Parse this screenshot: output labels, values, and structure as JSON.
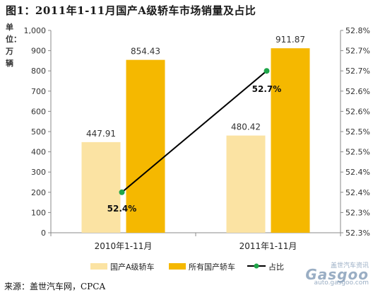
{
  "title": "图1：2011年1-11月国产A级轿车市场销量及占比",
  "unit_label": "单位：万辆",
  "source": "来源：盖世汽车网，CPCA",
  "watermark": {
    "brand": "Gasgoo",
    "cn": "盖世汽车资讯",
    "url": "auto.gasgoo.com"
  },
  "colors": {
    "series1": "#fbe3a3",
    "series2": "#f5b800",
    "line": "#000000",
    "marker": "#1fa64a"
  },
  "chart_data": {
    "type": "bar",
    "title": "图1：2011年1-11月国产A级轿车市场销量及占比",
    "ylabel": "单位：万辆",
    "categories": [
      "2010年1-11月",
      "2011年1-11月"
    ],
    "ylim": [
      0,
      1000
    ],
    "yticks": [
      "0",
      "100",
      "200",
      "300",
      "400",
      "500",
      "600",
      "700",
      "800",
      "900",
      "1,000"
    ],
    "y2lim": [
      52.3,
      52.8
    ],
    "y2ticks": [
      "52.3%",
      "52.3%",
      "52.4%",
      "52.4%",
      "52.5%",
      "52.5%",
      "52.6%",
      "52.6%",
      "52.7%",
      "52.7%",
      "52.8%"
    ],
    "series": [
      {
        "name": "国产A级轿车",
        "type": "bar",
        "values": [
          447.91,
          480.42
        ],
        "labels": [
          "447.91",
          "480.42"
        ]
      },
      {
        "name": "所有国产轿车",
        "type": "bar",
        "values": [
          854.43,
          911.87
        ],
        "labels": [
          "854.43",
          "911.87"
        ]
      },
      {
        "name": "占比",
        "type": "line",
        "axis": "right",
        "values": [
          52.4,
          52.7
        ],
        "labels": [
          "52.4%",
          "52.7%"
        ]
      }
    ],
    "grid": false,
    "legend": "bottom"
  }
}
